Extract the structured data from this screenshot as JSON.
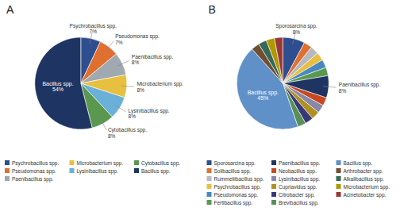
{
  "chart_data": [
    {
      "type": "pie",
      "title": "A",
      "categories": [
        "Psychrobacillus spp.",
        "Pseudomonas spp.",
        "Paenibacillus spp.",
        "Microbacterium spp.",
        "Lysinibacillus spp.",
        "Cytobacillus spp.",
        "Bacillus spp."
      ],
      "values": [
        7,
        7,
        8,
        8,
        8,
        8,
        54
      ],
      "value_labels": [
        "7%",
        "7%",
        "8%",
        "8%",
        "8%",
        "8%",
        "54%"
      ],
      "colors": [
        "#2e4e8f",
        "#e07030",
        "#a0a8b0",
        "#e8c040",
        "#6ab0d8",
        "#5a9850",
        "#1e3462"
      ],
      "data_labels": true,
      "legend": "bottom"
    },
    {
      "type": "pie",
      "title": "B",
      "categories": [
        "Sporosarcina spp.",
        "Solibacillus spp.",
        "Rummeliibacillus spp.",
        "Psychrobacillus spp.",
        "Pseudomonas spp.",
        "Fertibacillus spp.",
        "Paenibacillus spp.",
        "Neobacillus spp.",
        "Lysinibacillus spp.",
        "Cupriavidus spp.",
        "Citrobacter spp.",
        "Brevibacillus spp.",
        "Bacillus spp.",
        "Arthrobacter spp.",
        "Alkalibacillus spp.",
        "Microbacterium spp.",
        "Acinetobacter spp."
      ],
      "values": [
        8,
        3,
        3,
        3,
        3,
        3,
        8,
        3,
        3,
        3,
        3,
        3,
        45,
        3,
        3,
        3,
        3
      ],
      "value_labels": [
        "8%",
        null,
        null,
        null,
        null,
        null,
        "8%",
        null,
        null,
        null,
        null,
        null,
        "45%",
        null,
        null,
        null,
        null
      ],
      "colors": [
        "#2e4e8f",
        "#e07030",
        "#b8b8c0",
        "#e8c040",
        "#4888c0",
        "#5a9850",
        "#1e3462",
        "#c84820",
        "#8888a8",
        "#b09020",
        "#383878",
        "#589058",
        "#6090c8",
        "#705030",
        "#386858",
        "#b09800",
        "#983838"
      ],
      "data_labels": true,
      "legend": "bottom"
    }
  ]
}
